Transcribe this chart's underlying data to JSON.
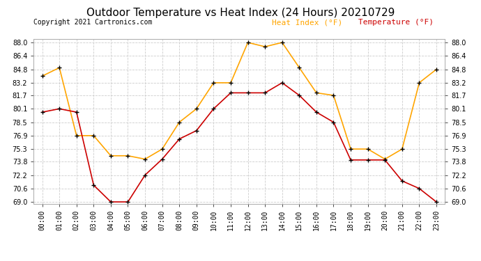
{
  "title": "Outdoor Temperature vs Heat Index (24 Hours) 20210729",
  "copyright": "Copyright 2021 Cartronics.com",
  "legend_heat_index": "Heat Index (°F)",
  "legend_temperature": "Temperature (°F)",
  "hours": [
    "00:00",
    "01:00",
    "02:00",
    "03:00",
    "04:00",
    "05:00",
    "06:00",
    "07:00",
    "08:00",
    "09:00",
    "10:00",
    "11:00",
    "12:00",
    "13:00",
    "14:00",
    "15:00",
    "16:00",
    "17:00",
    "18:00",
    "19:00",
    "20:00",
    "21:00",
    "22:00",
    "23:00"
  ],
  "heat_index": [
    84.0,
    85.0,
    76.9,
    76.9,
    74.5,
    74.5,
    74.1,
    75.3,
    78.5,
    80.1,
    83.2,
    83.2,
    88.0,
    87.5,
    88.0,
    85.0,
    82.0,
    81.7,
    75.3,
    75.3,
    74.1,
    75.3,
    83.2,
    84.8
  ],
  "temperature": [
    79.7,
    80.1,
    79.7,
    71.0,
    69.0,
    69.0,
    72.2,
    74.1,
    76.5,
    77.5,
    80.1,
    82.0,
    82.0,
    82.0,
    83.2,
    81.7,
    79.7,
    78.5,
    74.0,
    74.0,
    74.0,
    71.5,
    70.6,
    69.0
  ],
  "ylim_min": 69.0,
  "ylim_max": 88.0,
  "yticks": [
    69.0,
    70.6,
    72.2,
    73.8,
    75.3,
    76.9,
    78.5,
    80.1,
    81.7,
    83.2,
    84.8,
    86.4,
    88.0
  ],
  "heat_index_color": "#FFA500",
  "temperature_color": "#CC0000",
  "marker_color": "black",
  "grid_color": "#CCCCCC",
  "background_color": "#FFFFFF",
  "title_fontsize": 11,
  "legend_fontsize": 8,
  "copyright_fontsize": 7,
  "tick_fontsize": 7
}
